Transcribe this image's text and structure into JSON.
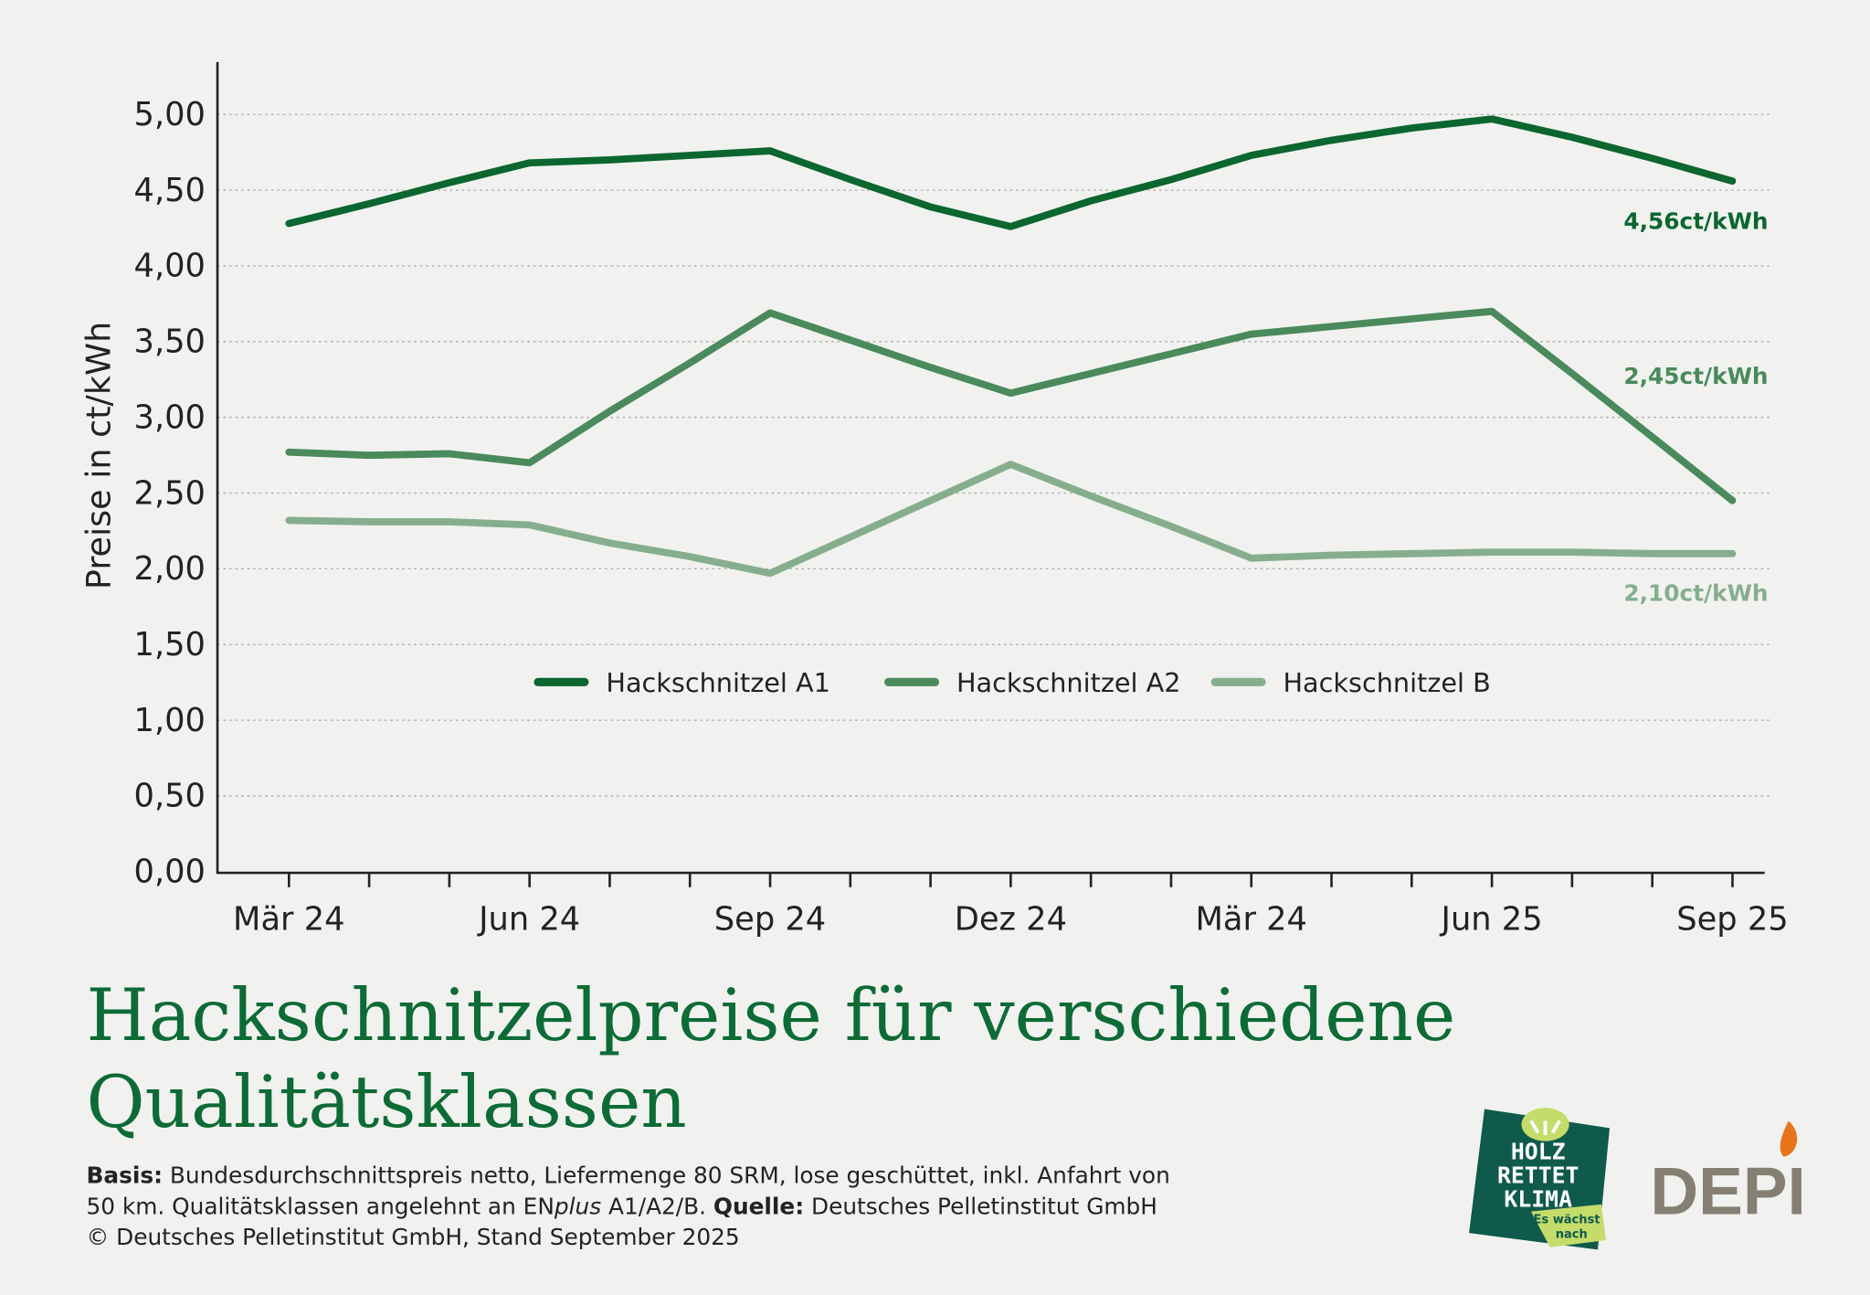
{
  "title_lines": [
    "Hackschnitzelpreise für verschiedene",
    "Qualitätsklassen"
  ],
  "footer": {
    "basis_label": "Basis:",
    "basis_text": " Bundesdurchschnittspreis netto, Liefermenge 80 SRM, lose geschüttet, inkl. Anfahrt von",
    "line2_a": "50 km. Qualitätsklassen angelehnt an EN",
    "line2_italic": "plus",
    "line2_b": " A1/A2/B. ",
    "source_label": "Quelle:",
    "source_text": " Deutsches Pelletinstitut GmbH",
    "line3": "© Deutsches Pelletinstitut GmbH, Stand September 2025"
  },
  "logos": {
    "holz": [
      "HOLZ",
      "RETTET",
      "KLIMA"
    ],
    "holz_tag": [
      "Es wächst",
      "nach"
    ],
    "depi": "DEPI"
  },
  "colors": {
    "background": "#f1f2ef",
    "a1": "#0b6630",
    "a2": "#4a8a5c",
    "b": "#86ae8e",
    "title": "#0d6b35"
  },
  "chart_data": {
    "type": "line",
    "ylabel": "Preise in ct/kWh",
    "ylim": [
      0,
      5
    ],
    "yticks": [
      "0,00",
      "0,50",
      "1,00",
      "1,50",
      "2,00",
      "2,50",
      "3,00",
      "3,50",
      "4,00",
      "4,50",
      "5,00"
    ],
    "grid": "horizontal dotted",
    "x_tick_labels": [
      "Mär 24",
      "",
      "",
      "Jun 24",
      "",
      "",
      "Sep 24",
      "",
      "",
      "Dez 24",
      "",
      "",
      "Mär 24",
      "",
      "",
      "Jun 25",
      "",
      "",
      "Sep 25"
    ],
    "legend_position": "center",
    "series": [
      {
        "name": "Hackschnitzel A1",
        "color": "#0b6630",
        "end_label": "4,56ct/kWh",
        "values": [
          4.28,
          4.41,
          4.55,
          4.68,
          4.7,
          4.73,
          4.76,
          4.57,
          4.39,
          4.26,
          4.43,
          4.57,
          4.73,
          4.83,
          4.91,
          4.97,
          4.85,
          4.71,
          4.56
        ]
      },
      {
        "name": "Hackschnitzel A2",
        "color": "#4a8a5c",
        "end_label": "2,45ct/kWh",
        "values": [
          2.77,
          2.75,
          2.76,
          2.7,
          3.04,
          3.36,
          3.69,
          3.51,
          3.33,
          3.16,
          3.29,
          3.42,
          3.55,
          3.6,
          3.65,
          3.7,
          3.29,
          2.87,
          2.45
        ]
      },
      {
        "name": "Hackschnitzel B",
        "color": "#86ae8e",
        "end_label": "2,10ct/kWh",
        "values": [
          2.32,
          2.31,
          2.31,
          2.29,
          2.17,
          2.08,
          1.97,
          2.21,
          2.45,
          2.69,
          2.48,
          2.28,
          2.07,
          2.09,
          2.1,
          2.11,
          2.11,
          2.1,
          2.1
        ]
      }
    ]
  }
}
